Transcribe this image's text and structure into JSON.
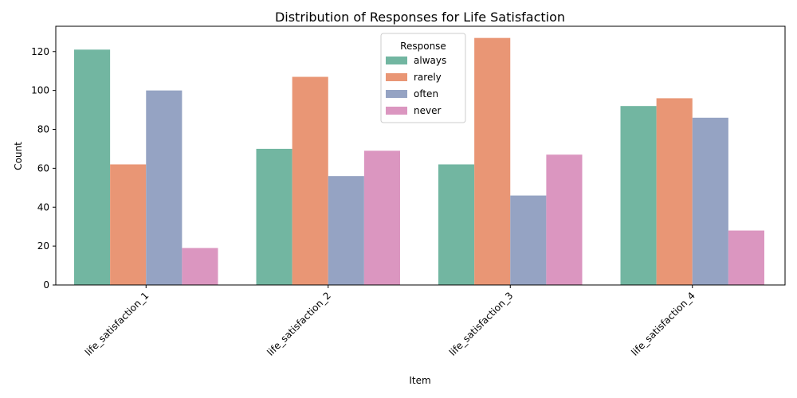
{
  "chart_data": {
    "type": "bar",
    "title": "Distribution of Responses for Life Satisfaction",
    "xlabel": "Item",
    "ylabel": "Count",
    "ylim": [
      0,
      133
    ],
    "yticks": [
      0,
      20,
      40,
      60,
      80,
      100,
      120
    ],
    "categories": [
      "life_satisfaction_1",
      "life_satisfaction_2",
      "life_satisfaction_3",
      "life_satisfaction_4"
    ],
    "legend": {
      "title": "Response",
      "placement": "upper-center"
    },
    "grid": false,
    "series": [
      {
        "name": "always",
        "color": "#72b6a1",
        "values": [
          121,
          70,
          62,
          92
        ]
      },
      {
        "name": "rarely",
        "color": "#e99675",
        "values": [
          62,
          107,
          127,
          96
        ]
      },
      {
        "name": "often",
        "color": "#95a3c3",
        "values": [
          100,
          56,
          46,
          86
        ]
      },
      {
        "name": "never",
        "color": "#db96c0",
        "values": [
          19,
          69,
          67,
          28
        ]
      }
    ]
  }
}
